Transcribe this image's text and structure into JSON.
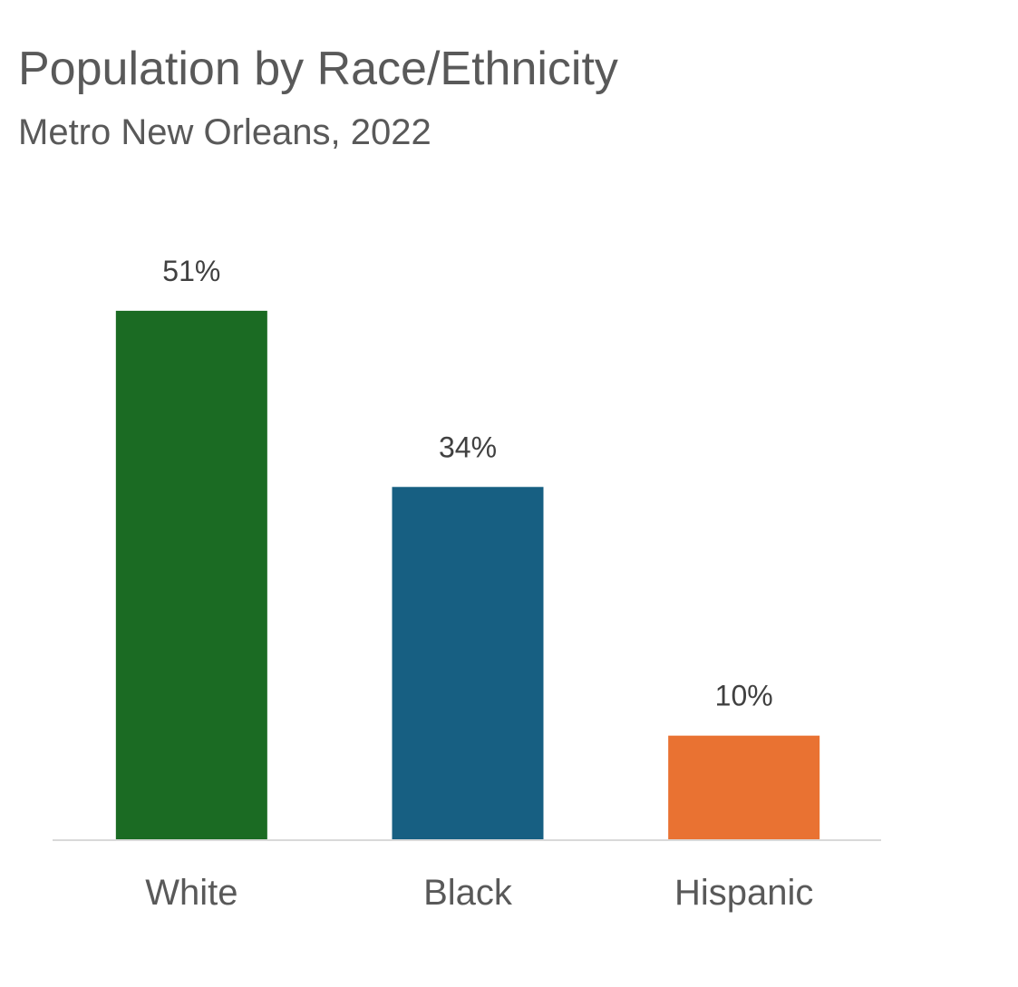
{
  "chart_data": {
    "type": "bar",
    "title": "Population by Race/Ethnicity",
    "subtitle": "Metro New Orleans, 2022",
    "categories": [
      "White",
      "Black",
      "Hispanic"
    ],
    "values": [
      51,
      34,
      10
    ],
    "data_labels": [
      "51%",
      "34%",
      "10%"
    ],
    "colors": [
      "#1b6b23",
      "#175f82",
      "#e97232"
    ],
    "xlabel": "",
    "ylabel": "",
    "ylim": [
      0,
      60
    ],
    "grid": false,
    "y_axis_visible": false
  }
}
